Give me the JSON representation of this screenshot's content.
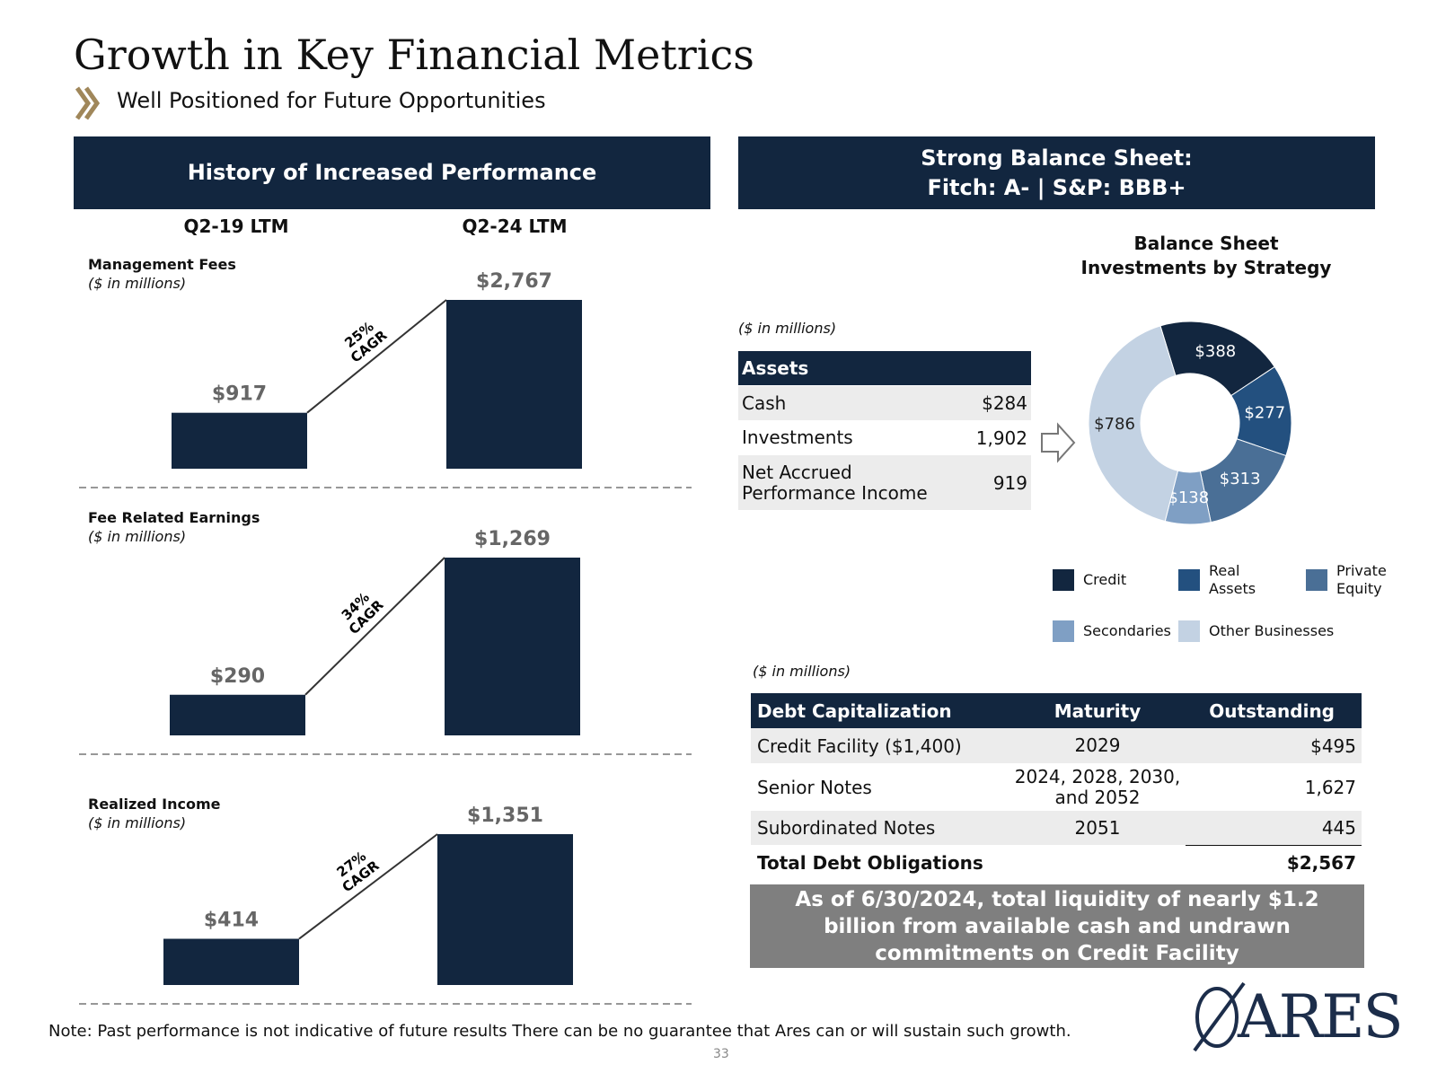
{
  "header": {
    "title": "Growth in Key Financial Metrics",
    "subtitle": "Well Positioned for Future Opportunities"
  },
  "left_panel": {
    "title": "History of Increased Performance",
    "periods": [
      "Q2-19 LTM",
      "Q2-24 LTM"
    ]
  },
  "right_panel": {
    "title": [
      "Strong Balance Sheet:",
      "Fitch: A-  |  S&P: BBB+"
    ]
  },
  "chart_data": [
    {
      "type": "bar",
      "title": "Management Fees",
      "subtitle": "($ in millions)",
      "values": [
        917,
        2767
      ],
      "value_labels": [
        "$917",
        "$2,767"
      ],
      "annotation": [
        "25%",
        "CAGR"
      ],
      "color": "#12263f"
    },
    {
      "type": "bar",
      "title": "Fee Related Earnings",
      "subtitle": "($ in millions)",
      "values": [
        290,
        1269
      ],
      "value_labels": [
        "$290",
        "$1,269"
      ],
      "annotation": [
        "34%",
        "CAGR"
      ],
      "color": "#12263f"
    },
    {
      "type": "bar",
      "title": "Realized Income",
      "subtitle": "($ in millions)",
      "values": [
        414,
        1351
      ],
      "value_labels": [
        "$414",
        "$1,351"
      ],
      "annotation": [
        "27%",
        "CAGR"
      ],
      "color": "#12263f"
    },
    {
      "type": "donut",
      "title": "Balance Sheet Investments by Strategy",
      "categories": [
        "Credit",
        "Real Assets",
        "Private Equity",
        "Secondaries",
        "Other Businesses"
      ],
      "values": [
        388,
        277,
        313,
        138,
        786
      ],
      "value_labels": [
        "$388",
        "$277",
        "$313",
        "$138",
        "$786"
      ],
      "colors": [
        "#12263f",
        "#23507f",
        "#4a6f96",
        "#7f9fc4",
        "#c3d2e3"
      ]
    }
  ],
  "assets_table": {
    "note": "($ in millions)",
    "title": "Assets",
    "rows": [
      [
        "Cash",
        "$284"
      ],
      [
        "Investments",
        "1,902"
      ],
      [
        "Net Accrued Performance Income",
        "919"
      ]
    ]
  },
  "debt_table": {
    "note": "($ in millions)",
    "header": [
      "Debt Capitalization",
      "Maturity",
      "Outstanding"
    ],
    "rows": [
      [
        "Credit Facility ($1,400)",
        "2029",
        "$495"
      ],
      [
        "Senior Notes",
        "2024, 2028, 2030, and 2052",
        "1,627"
      ],
      [
        "Subordinated Notes",
        "2051",
        "445"
      ]
    ],
    "total": [
      "Total Debt Obligations",
      "$2,567"
    ]
  },
  "callout": "As of 6/30/2024, total liquidity of nearly $1.2 billion from available cash and undrawn commitments on Credit Facility",
  "footer": {
    "note": "Note: Past performance is not indicative of future results There can be no guarantee that Ares can or will sustain such growth.",
    "page": "33",
    "logo": "ARES"
  }
}
